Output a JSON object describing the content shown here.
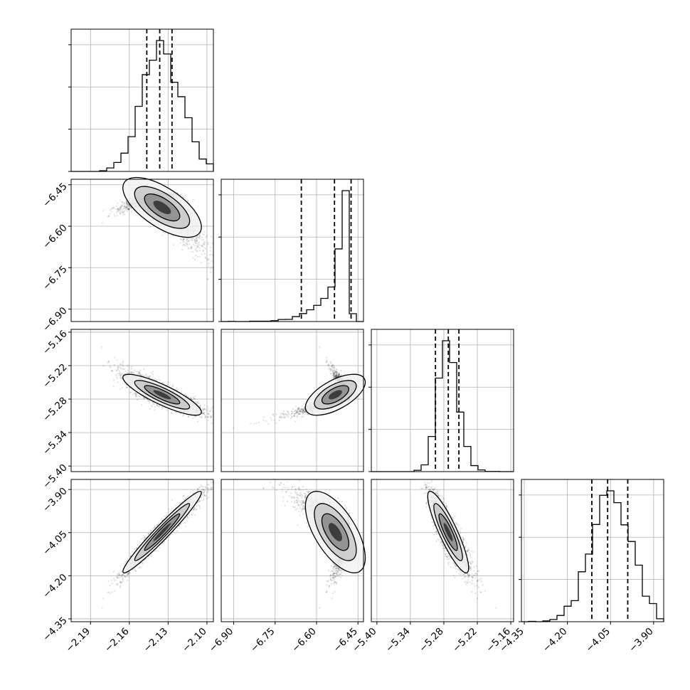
{
  "chart_data": {
    "type": "corner",
    "title": "",
    "parameters": [
      {
        "name": "",
        "range": [
          -2.205,
          -2.095
        ],
        "ticks": [
          "-2.19",
          "-2.16",
          "-2.13",
          "-2.10"
        ],
        "tick_values": [
          -2.19,
          -2.16,
          -2.13,
          -2.1
        ],
        "quantiles": [
          -2.1465,
          -2.1365,
          -2.127
        ],
        "mode": -2.135,
        "width": 0.015,
        "skew": 0.1,
        "cutoff": null
      },
      {
        "name": "",
        "range": [
          -6.945,
          -6.43
        ],
        "ticks": [
          "-6.45",
          "-6.60",
          "-6.75",
          "-6.90"
        ],
        "tick_values": [
          -6.45,
          -6.6,
          -6.75,
          -6.9
        ],
        "quantiles": [
          -6.655,
          -6.535,
          -6.475
        ],
        "mode": -6.48,
        "width": 0.11,
        "skew": 1.0,
        "cutoff": -6.455
      },
      {
        "name": "",
        "range": [
          -5.41,
          -5.155
        ],
        "ticks": [
          "-5.16",
          "-5.22",
          "-5.28",
          "-5.34",
          "-5.40"
        ],
        "tick_values": [
          -5.16,
          -5.22,
          -5.28,
          -5.34,
          -5.4
        ],
        "quantiles": [
          -5.295,
          -5.272,
          -5.253
        ],
        "mode": -5.272,
        "width": 0.018,
        "skew": 0.15,
        "cutoff": null
      },
      {
        "name": "",
        "range": [
          -4.36,
          -3.865
        ],
        "ticks": [
          "-3.90",
          "-4.05",
          "-4.20",
          "-4.35"
        ],
        "tick_values": [
          -3.9,
          -4.05,
          -4.2,
          -4.35
        ],
        "quantiles": [
          -4.115,
          -4.06,
          -3.99
        ],
        "mode": -4.05,
        "width": 0.07,
        "skew": 0.0,
        "cutoff": null
      }
    ],
    "correlations": [
      [
        1,
        -0.9,
        -0.85,
        0.97
      ],
      [
        -0.9,
        1,
        0.95,
        -0.9
      ],
      [
        -0.85,
        0.95,
        1,
        -0.88
      ],
      [
        0.97,
        -0.9,
        -0.88,
        1
      ]
    ],
    "histogram_bins": 20,
    "quantile_lines": "dashed",
    "grid": true,
    "colors": {
      "line": "#000000",
      "grid": "#b0b0b0",
      "points": "#000000",
      "fill_levels": [
        "#f2f2f2",
        "#c8c8c8",
        "#8a8a8a",
        "#333333"
      ]
    }
  }
}
